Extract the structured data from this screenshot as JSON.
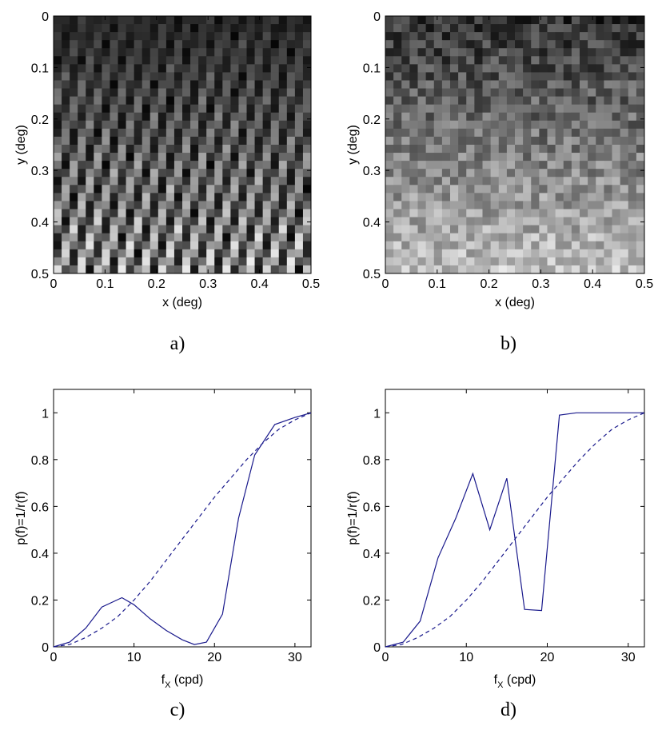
{
  "chart_data": [
    {
      "type": "heatmap",
      "panel_label": "a)",
      "xlabel": "x (deg)",
      "ylabel": "y (deg)",
      "xlim": [
        0,
        0.5
      ],
      "ylim": [
        0,
        0.5
      ],
      "y_axis_direction": "top-to-bottom",
      "x_ticks": [
        "0",
        "0.1",
        "0.2",
        "0.3",
        "0.4",
        "0.5"
      ],
      "y_ticks": [
        "0",
        "0.1",
        "0.2",
        "0.3",
        "0.4",
        "0.5"
      ],
      "grid": false,
      "colormap": "gray",
      "pixels_per_side": 32,
      "pattern": "diagonal grating of alternating dark and light stripes, dark at top, brightening toward the bottom"
    },
    {
      "type": "heatmap",
      "panel_label": "b)",
      "xlabel": "x (deg)",
      "ylabel": "y (deg)",
      "xlim": [
        0,
        0.5
      ],
      "ylim": [
        0,
        0.5
      ],
      "y_axis_direction": "top-to-bottom",
      "x_ticks": [
        "0",
        "0.1",
        "0.2",
        "0.3",
        "0.4",
        "0.5"
      ],
      "y_ticks": [
        "0",
        "0.1",
        "0.2",
        "0.3",
        "0.4",
        "0.5"
      ],
      "grid": false,
      "colormap": "gray",
      "pixels_per_side": 32,
      "pattern": "random noise texture, dark at top, brightening toward the bottom"
    },
    {
      "type": "line",
      "panel_label": "c)",
      "xlabel_main": "f",
      "xlabel_sub": "X",
      "xlabel_rest": " (cpd)",
      "ylabel": "p(f)=1/r(f)",
      "xlim": [
        0,
        32
      ],
      "ylim": [
        0,
        1.1
      ],
      "x_ticks": [
        "0",
        "10",
        "20",
        "30"
      ],
      "y_ticks": [
        "0",
        "0.2",
        "0.4",
        "0.6",
        "0.8",
        "1"
      ],
      "grid": false,
      "series": [
        {
          "style": "solid",
          "color": "#1a1a8c",
          "x": [
            0,
            2,
            4,
            6,
            8.5,
            10,
            12,
            14,
            16,
            17.5,
            19,
            21,
            23,
            25,
            27.5,
            30,
            32
          ],
          "y": [
            0,
            0.02,
            0.08,
            0.17,
            0.21,
            0.18,
            0.12,
            0.07,
            0.03,
            0.01,
            0.02,
            0.14,
            0.55,
            0.82,
            0.95,
            0.98,
            1.0
          ]
        },
        {
          "style": "dashed",
          "color": "#1a1a8c",
          "x": [
            0,
            2,
            4,
            6,
            8,
            10,
            12,
            14,
            16,
            18,
            20,
            22,
            24,
            26,
            28,
            30,
            32
          ],
          "y": [
            0,
            0.01,
            0.04,
            0.08,
            0.13,
            0.2,
            0.28,
            0.37,
            0.46,
            0.55,
            0.64,
            0.72,
            0.8,
            0.87,
            0.93,
            0.97,
            1.0
          ]
        }
      ]
    },
    {
      "type": "line",
      "panel_label": "d)",
      "xlabel_main": "f",
      "xlabel_sub": "X",
      "xlabel_rest": " (cpd)",
      "ylabel": "p(f)=1/r(f)",
      "xlim": [
        0,
        32
      ],
      "ylim": [
        0,
        1.1
      ],
      "x_ticks": [
        "0",
        "10",
        "20",
        "30"
      ],
      "y_ticks": [
        "0",
        "0.2",
        "0.4",
        "0.6",
        "0.8",
        "1"
      ],
      "grid": false,
      "series": [
        {
          "style": "solid",
          "color": "#1a1a8c",
          "x": [
            0,
            2.2,
            4.3,
            6.5,
            8.7,
            10.8,
            12.9,
            15.0,
            17.2,
            19.3,
            21.5,
            23.6,
            32
          ],
          "y": [
            0,
            0.02,
            0.11,
            0.38,
            0.55,
            0.74,
            0.5,
            0.72,
            0.16,
            0.155,
            0.99,
            1.0,
            1.0
          ]
        },
        {
          "style": "dashed",
          "color": "#1a1a8c",
          "x": [
            0,
            2,
            4,
            6,
            8,
            10,
            12,
            14,
            16,
            18,
            20,
            22,
            24,
            26,
            28,
            30,
            32
          ],
          "y": [
            0,
            0.01,
            0.04,
            0.08,
            0.13,
            0.2,
            0.28,
            0.37,
            0.46,
            0.55,
            0.64,
            0.72,
            0.8,
            0.87,
            0.93,
            0.97,
            1.0
          ]
        }
      ]
    }
  ]
}
